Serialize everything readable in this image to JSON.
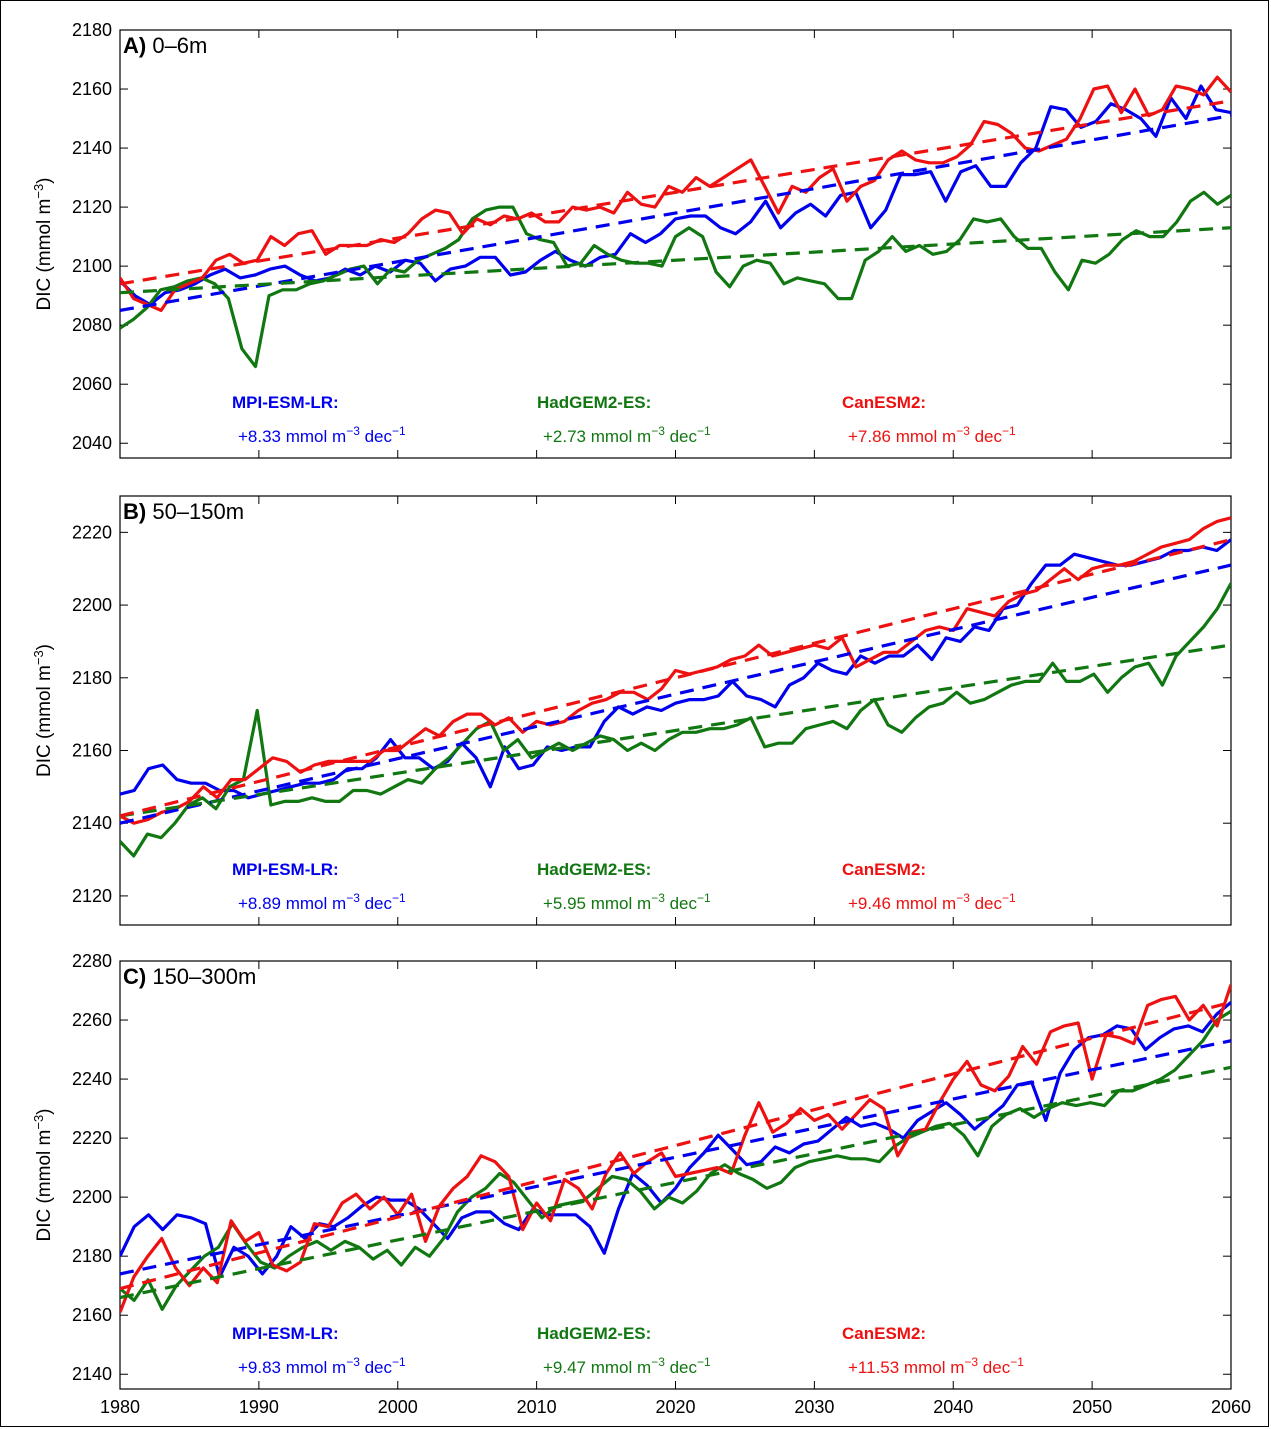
{
  "chart_data": [
    {
      "type": "line",
      "panel_letter": "A)",
      "title": "0–6m",
      "ylabel": "DIC (mmol m",
      "ylabel_exp": "−3",
      "ylabel_close": ")",
      "xlim": [
        1980,
        2060
      ],
      "ylim": [
        2035,
        2180
      ],
      "yticks": [
        2040,
        2060,
        2080,
        2100,
        2120,
        2140,
        2160,
        2180
      ],
      "xticks": [
        1980,
        1990,
        2000,
        2010,
        2020,
        2030,
        2040,
        2050,
        2060
      ],
      "xstep": 1,
      "series": [
        {
          "name": "MPI-ESM-LR",
          "color": "#0000ee",
          "values": [
            2095,
            2090,
            2087,
            2091,
            2092,
            2094,
            2097,
            2099,
            2096,
            2097,
            2099,
            2100,
            2097,
            2095,
            2096,
            2099,
            2097,
            2100,
            2098,
            2102,
            2101,
            2095,
            2099,
            2100,
            2103,
            2103,
            2097,
            2098,
            2102,
            2105,
            2102,
            2100,
            2103,
            2104,
            2111,
            2108,
            2111,
            2116,
            2117,
            2117,
            2113,
            2111,
            2115,
            2122,
            2113,
            2118,
            2121,
            2117,
            2124,
            2125,
            2113,
            2119,
            2131,
            2131,
            2132,
            2122,
            2132,
            2134,
            2127,
            2127,
            2135,
            2140,
            2154,
            2153,
            2147,
            2149,
            2155,
            2153,
            2150,
            2144,
            2157,
            2150,
            2161,
            2153,
            2152
          ],
          "trend": [
            2085,
            2151
          ],
          "trend_label": "+8.33 mmol m",
          "trend_exp": "−3",
          "trend_unit": "dec",
          "trend_unit_exp": "−1"
        },
        {
          "name": "HadGEM2-ES",
          "color": "#117711",
          "values": [
            2079,
            2082,
            2086,
            2092,
            2093,
            2095,
            2096,
            2094,
            2089,
            2072,
            2066,
            2090,
            2092,
            2092,
            2094,
            2095,
            2097,
            2099,
            2100,
            2094,
            2099,
            2098,
            2102,
            2104,
            2106,
            2109,
            2116,
            2119,
            2120,
            2120,
            2111,
            2109,
            2108,
            2100,
            2101,
            2107,
            2104,
            2102,
            2101,
            2101,
            2100,
            2110,
            2113,
            2110,
            2098,
            2093,
            2100,
            2102,
            2101,
            2094,
            2096,
            2095,
            2094,
            2089,
            2089,
            2102,
            2105,
            2110,
            2105,
            2107,
            2104,
            2105,
            2109,
            2116,
            2115,
            2116,
            2110,
            2106,
            2106,
            2098,
            2092,
            2102,
            2101,
            2104,
            2109,
            2112,
            2110,
            2110,
            2115,
            2122,
            2125,
            2121,
            2124
          ],
          "trend": [
            2091,
            2113
          ],
          "trend_label": "+2.73 mmol m",
          "trend_exp": "−3",
          "trend_unit": "dec",
          "trend_unit_exp": "−1"
        },
        {
          "name": "CanESM2",
          "color": "#ee1111",
          "values": [
            2096,
            2089,
            2087,
            2085,
            2092,
            2094,
            2096,
            2102,
            2104,
            2101,
            2102,
            2110,
            2107,
            2111,
            2112,
            2104,
            2107,
            2107,
            2107,
            2109,
            2108,
            2111,
            2116,
            2119,
            2118,
            2111,
            2116,
            2114,
            2117,
            2116,
            2118,
            2115,
            2115,
            2120,
            2119,
            2120,
            2118,
            2125,
            2121,
            2120,
            2127,
            2125,
            2130,
            2127,
            2130,
            2133,
            2136,
            2127,
            2118,
            2127,
            2125,
            2130,
            2133,
            2122,
            2127,
            2129,
            2136,
            2139,
            2136,
            2135,
            2135,
            2137,
            2141,
            2149,
            2148,
            2145,
            2140,
            2139,
            2141,
            2143,
            2150,
            2160,
            2161,
            2152,
            2160,
            2151,
            2153,
            2161,
            2160,
            2158,
            2164,
            2159
          ],
          "trend": [
            2094,
            2156
          ],
          "trend_label": "+7.86 mmol m",
          "trend_exp": "−3",
          "trend_unit": "dec",
          "trend_unit_exp": "−1"
        }
      ]
    },
    {
      "type": "line",
      "panel_letter": "B)",
      "title": "50–150m",
      "ylabel": "DIC (mmol m",
      "ylabel_exp": "−3",
      "ylabel_close": ")",
      "xlim": [
        1980,
        2060
      ],
      "ylim": [
        2112,
        2230
      ],
      "yticks": [
        2120,
        2140,
        2160,
        2180,
        2200,
        2220
      ],
      "xticks": [
        1980,
        1990,
        2000,
        2010,
        2020,
        2030,
        2040,
        2050,
        2060
      ],
      "xstep": 1,
      "series": [
        {
          "name": "MPI-ESM-LR",
          "color": "#0000ee",
          "values": [
            2148,
            2149,
            2155,
            2156,
            2152,
            2151,
            2151,
            2149,
            2149,
            2147,
            2148,
            2149,
            2150,
            2151,
            2151,
            2152,
            2155,
            2155,
            2158,
            2163,
            2158,
            2158,
            2155,
            2157,
            2162,
            2158,
            2150,
            2161,
            2155,
            2156,
            2161,
            2160,
            2161,
            2161,
            2168,
            2172,
            2170,
            2172,
            2171,
            2173,
            2174,
            2174,
            2175,
            2179,
            2175,
            2174,
            2172,
            2178,
            2180,
            2184,
            2182,
            2181,
            2186,
            2184,
            2186,
            2186,
            2189,
            2185,
            2191,
            2190,
            2194,
            2193,
            2199,
            2200,
            2206,
            2211,
            2211,
            2214,
            2213,
            2212,
            2211,
            2211,
            2212,
            2213,
            2215,
            2215,
            2216,
            2215,
            2218
          ],
          "trend": [
            2140,
            2211
          ],
          "trend_label": "+8.89 mmol m",
          "trend_exp": "−3",
          "trend_unit": "dec",
          "trend_unit_exp": "−1"
        },
        {
          "name": "HadGEM2-ES",
          "color": "#117711",
          "values": [
            2135,
            2131,
            2137,
            2136,
            2140,
            2145,
            2147,
            2144,
            2150,
            2152,
            2171,
            2145,
            2146,
            2146,
            2147,
            2146,
            2146,
            2149,
            2149,
            2148,
            2150,
            2152,
            2151,
            2155,
            2158,
            2162,
            2166,
            2168,
            2160,
            2163,
            2158,
            2160,
            2162,
            2160,
            2162,
            2164,
            2163,
            2160,
            2162,
            2160,
            2163,
            2165,
            2165,
            2166,
            2166,
            2167,
            2169,
            2161,
            2162,
            2162,
            2166,
            2167,
            2168,
            2166,
            2171,
            2174,
            2167,
            2165,
            2169,
            2172,
            2173,
            2176,
            2173,
            2174,
            2176,
            2178,
            2179,
            2179,
            2184,
            2179,
            2179,
            2181,
            2176,
            2180,
            2183,
            2184,
            2178,
            2186,
            2190,
            2194,
            2199,
            2206
          ],
          "trend": [
            2142,
            2189
          ],
          "trend_label": "+5.95 mmol m",
          "trend_exp": "−3",
          "trend_unit": "dec",
          "trend_unit_exp": "−1"
        },
        {
          "name": "CanESM2",
          "color": "#ee1111",
          "values": [
            2142,
            2140,
            2141,
            2143,
            2144,
            2146,
            2150,
            2147,
            2152,
            2152,
            2155,
            2158,
            2157,
            2154,
            2156,
            2157,
            2157,
            2157,
            2157,
            2160,
            2160,
            2163,
            2166,
            2164,
            2168,
            2170,
            2170,
            2167,
            2169,
            2165,
            2168,
            2167,
            2168,
            2171,
            2173,
            2174,
            2176,
            2176,
            2174,
            2177,
            2182,
            2181,
            2182,
            2183,
            2185,
            2186,
            2189,
            2186,
            2187,
            2188,
            2189,
            2188,
            2191,
            2183,
            2185,
            2187,
            2187,
            2190,
            2193,
            2194,
            2193,
            2199,
            2198,
            2197,
            2201,
            2203,
            2204,
            2207,
            2210,
            2207,
            2210,
            2211,
            2211,
            2212,
            2214,
            2216,
            2217,
            2218,
            2221,
            2223,
            2224
          ],
          "trend": [
            2142,
            2218
          ],
          "trend_label": "+9.46 mmol m",
          "trend_exp": "−3",
          "trend_unit": "dec",
          "trend_unit_exp": "−1"
        }
      ]
    },
    {
      "type": "line",
      "panel_letter": "C)",
      "title": "150–300m",
      "ylabel": "DIC (mmol m",
      "ylabel_exp": "−3",
      "ylabel_close": ")",
      "xlim": [
        1980,
        2060
      ],
      "ylim": [
        2135,
        2280
      ],
      "yticks": [
        2140,
        2160,
        2180,
        2200,
        2220,
        2240,
        2260,
        2280
      ],
      "xticks": [
        1980,
        1990,
        2000,
        2010,
        2020,
        2030,
        2040,
        2050,
        2060
      ],
      "xstep": 1,
      "series": [
        {
          "name": "MPI-ESM-LR",
          "color": "#0000ee",
          "values": [
            2180,
            2190,
            2194,
            2189,
            2194,
            2193,
            2191,
            2173,
            2183,
            2180,
            2174,
            2180,
            2190,
            2186,
            2191,
            2190,
            2193,
            2197,
            2200,
            2199,
            2199,
            2196,
            2191,
            2186,
            2193,
            2195,
            2195,
            2191,
            2189,
            2196,
            2194,
            2194,
            2194,
            2190,
            2181,
            2196,
            2208,
            2204,
            2198,
            2203,
            2210,
            2215,
            2221,
            2216,
            2211,
            2212,
            2217,
            2215,
            2218,
            2219,
            2223,
            2227,
            2224,
            2225,
            2223,
            2220,
            2226,
            2229,
            2232,
            2228,
            2223,
            2227,
            2231,
            2238,
            2239,
            2226,
            2242,
            2250,
            2254,
            2255,
            2258,
            2257,
            2250,
            2254,
            2257,
            2258,
            2256,
            2262,
            2266
          ],
          "trend": [
            2174,
            2253
          ],
          "trend_label": "+9.83 mmol m",
          "trend_exp": "−3",
          "trend_unit": "dec",
          "trend_unit_exp": "−1"
        },
        {
          "name": "HadGEM2-ES",
          "color": "#117711",
          "values": [
            2169,
            2165,
            2172,
            2162,
            2170,
            2175,
            2180,
            2183,
            2191,
            2184,
            2178,
            2176,
            2180,
            2183,
            2185,
            2182,
            2185,
            2183,
            2179,
            2182,
            2177,
            2183,
            2180,
            2186,
            2195,
            2200,
            2203,
            2208,
            2205,
            2199,
            2193,
            2197,
            2198,
            2199,
            2203,
            2207,
            2206,
            2202,
            2196,
            2200,
            2198,
            2202,
            2208,
            2211,
            2208,
            2206,
            2203,
            2205,
            2210,
            2212,
            2213,
            2214,
            2213,
            2213,
            2212,
            2217,
            2220,
            2222,
            2224,
            2225,
            2221,
            2214,
            2224,
            2228,
            2230,
            2227,
            2230,
            2232,
            2231,
            2232,
            2231,
            2236,
            2236,
            2238,
            2240,
            2243,
            2248,
            2253,
            2260,
            2263
          ],
          "trend": [
            2166,
            2244
          ],
          "trend_label": "+9.47 mmol m",
          "trend_exp": "−3",
          "trend_unit": "dec",
          "trend_unit_exp": "−1"
        },
        {
          "name": "CanESM2",
          "color": "#ee1111",
          "values": [
            2161,
            2173,
            2180,
            2186,
            2176,
            2170,
            2176,
            2171,
            2192,
            2185,
            2188,
            2177,
            2175,
            2178,
            2191,
            2190,
            2198,
            2201,
            2196,
            2200,
            2194,
            2201,
            2185,
            2197,
            2203,
            2207,
            2214,
            2212,
            2207,
            2189,
            2198,
            2192,
            2206,
            2203,
            2196,
            2208,
            2215,
            2208,
            2212,
            2215,
            2207,
            2208,
            2209,
            2210,
            2208,
            2221,
            2232,
            2222,
            2225,
            2230,
            2226,
            2228,
            2223,
            2228,
            2233,
            2230,
            2214,
            2222,
            2223,
            2232,
            2240,
            2246,
            2238,
            2236,
            2241,
            2251,
            2245,
            2256,
            2258,
            2259,
            2240,
            2255,
            2254,
            2252,
            2265,
            2267,
            2268,
            2260,
            2265,
            2258,
            2272
          ],
          "trend": [
            2169,
            2266
          ],
          "trend_label": "+11.53 mmol m",
          "trend_exp": "−3",
          "trend_unit": "dec",
          "trend_unit_exp": "−1"
        }
      ]
    }
  ]
}
